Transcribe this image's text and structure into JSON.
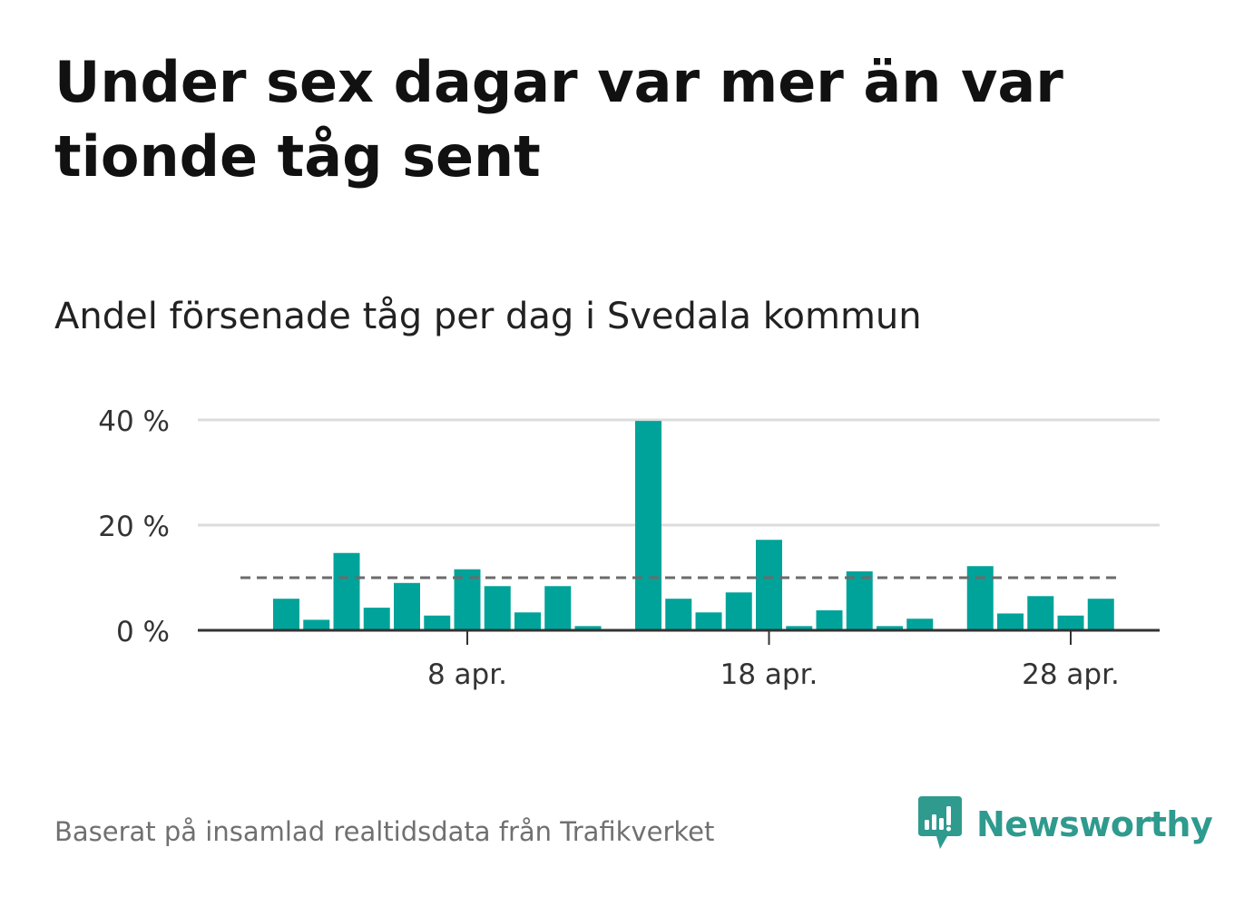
{
  "title": "Under sex dagar var mer än var tionde tåg sent",
  "subtitle": "Andel försenade tåg per dag i Svedala kommun",
  "source": "Baserat på insamlad realtidsdata från Trafikverket",
  "brand": {
    "name": "Newsworthy",
    "icon": "newsworthy-logo-icon",
    "color": "#2f9a8e"
  },
  "colors": {
    "bar": "#00a39a",
    "grid": "#dcdcdc",
    "axis": "#333333",
    "reference_line": "#6b6b6b"
  },
  "chart_data": {
    "type": "bar",
    "x": [
      "2 apr.",
      "3 apr.",
      "4 apr.",
      "5 apr.",
      "6 apr.",
      "7 apr.",
      "8 apr.",
      "9 apr.",
      "10 apr.",
      "11 apr.",
      "12 apr.",
      "13 apr.",
      "14 apr.",
      "15 apr.",
      "16 apr.",
      "17 apr.",
      "18 apr.",
      "19 apr.",
      "20 apr.",
      "21 apr.",
      "22 apr.",
      "23 apr.",
      "24 apr.",
      "25 apr.",
      "26 apr.",
      "27 apr.",
      "28 apr.",
      "29 apr.",
      "30 apr."
    ],
    "values": [
      6,
      2,
      14.7,
      4.3,
      9,
      2.8,
      11.6,
      8.4,
      3.4,
      8.4,
      0.8,
      null,
      39.8,
      6,
      3.4,
      7.2,
      17.2,
      0.8,
      3.8,
      11.2,
      0.8,
      2.2,
      null,
      12.2,
      3.2,
      6.5,
      2.8,
      6,
      null
    ],
    "reference_line": {
      "value": 10,
      "style": "dashed"
    },
    "ylim": [
      0,
      40
    ],
    "yticks": [
      0,
      20,
      40
    ],
    "ytick_labels": [
      "0 %",
      "20 %",
      "40 %"
    ],
    "xtick_labels": [
      "8 apr.",
      "18 apr.",
      "28 apr."
    ],
    "xtick_index": [
      6,
      16,
      26
    ],
    "grid": true,
    "xlabel": "",
    "ylabel": ""
  }
}
